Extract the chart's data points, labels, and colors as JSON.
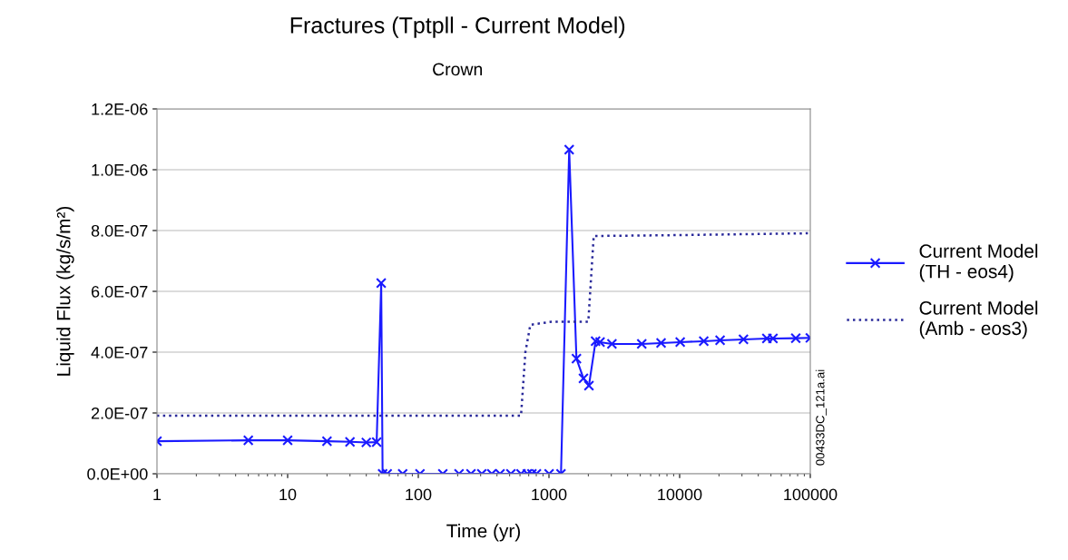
{
  "chart_data": {
    "type": "line",
    "title": "Fractures (Tptpll - Current Model)",
    "subtitle": "Crown",
    "xlabel": "Time (yr)",
    "ylabel": "Liquid Flux (kg/s/m²)",
    "log": "x",
    "xlim": [
      1,
      100000
    ],
    "xticks": [
      1,
      10,
      100,
      1000,
      10000,
      100000
    ],
    "ylim": [
      0,
      1.2e-06
    ],
    "yticks": [
      {
        "value": 0,
        "label": "0.0E+00"
      },
      {
        "value": 2e-07,
        "label": "2.0E-07"
      },
      {
        "value": 4e-07,
        "label": "4.0E-07"
      },
      {
        "value": 6e-07,
        "label": "6.0E-07"
      },
      {
        "value": 8e-07,
        "label": "8.0E-07"
      },
      {
        "value": 1e-06,
        "label": "1.0E-06"
      },
      {
        "value": 1.2e-06,
        "label": "1.2E-06"
      }
    ],
    "grid": "y",
    "legend": "right",
    "annotations": [
      "00433DC_121a.ai"
    ],
    "series": [
      {
        "name": "Current Model\n(TH - eos4)",
        "color": "#1a1aff",
        "marker": "cross",
        "line_style": "solid",
        "x": [
          1,
          5,
          10,
          20,
          30,
          40,
          48,
          52,
          53.3,
          57.8,
          75.9,
          103,
          154,
          205,
          253,
          306,
          365,
          422,
          511,
          611,
          683,
          740,
          802,
          1002,
          1236,
          1428,
          1623,
          1836,
          2022,
          2274,
          2460,
          3032,
          5130,
          7210,
          10100,
          15300,
          20400,
          30800,
          46500,
          51800,
          77400,
          100000
        ],
        "values": [
          1.07e-07,
          1.1e-07,
          1.1e-07,
          1.07e-07,
          1.05e-07,
          1.03e-07,
          1.04e-07,
          6.27e-07,
          0,
          0,
          0,
          0,
          0,
          0,
          0,
          0,
          0,
          0,
          0,
          0,
          0,
          0,
          0,
          0,
          0,
          1.066e-06,
          3.79e-07,
          3.14e-07,
          2.9e-07,
          4.36e-07,
          4.33e-07,
          4.27e-07,
          4.27e-07,
          4.3e-07,
          4.33e-07,
          4.36e-07,
          4.39e-07,
          4.42e-07,
          4.45e-07,
          4.45e-07,
          4.46e-07,
          4.47e-07
        ]
      },
      {
        "name": "Current Model\n(Amb - eos3)",
        "color": "#2a2a9a",
        "marker": "none",
        "line_style": "dotted",
        "x": [
          1,
          611,
          660,
          720,
          1050,
          2000,
          2200,
          10000,
          100000
        ],
        "values": [
          1.91e-07,
          1.91e-07,
          4e-07,
          4.9e-07,
          5e-07,
          5e-07,
          7.82e-07,
          7.85e-07,
          7.91e-07
        ]
      }
    ]
  }
}
